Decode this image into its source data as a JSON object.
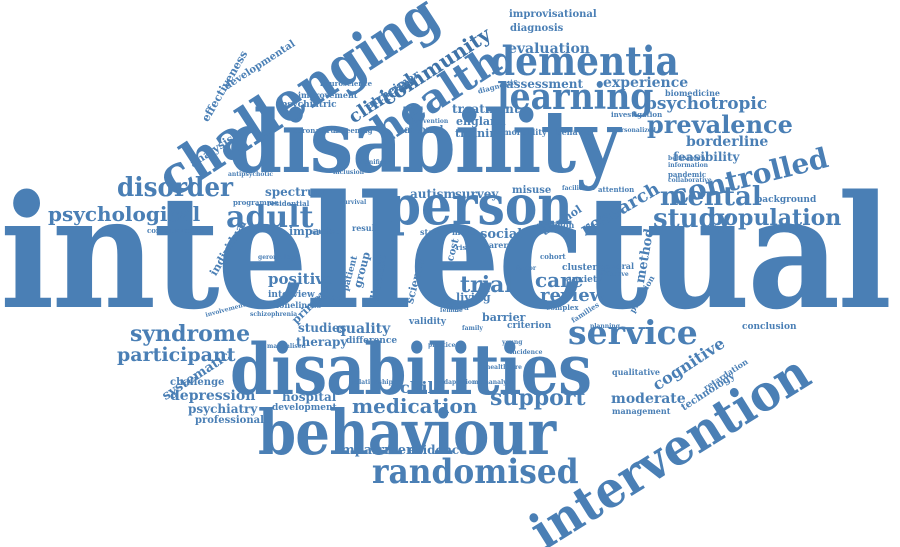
{
  "accent_color": "#4a7fb5",
  "background_color": "#ffffff",
  "words": {
    "intellectual": "intellectual",
    "disability": "disability",
    "disabilities": "disabilities",
    "behaviour": "behaviour",
    "intervention": "intervention",
    "challenging": "challenging",
    "health": "health",
    "learning": "learning",
    "dementia": "dementia",
    "person": "person",
    "adult": "adult",
    "disorder": "disorder",
    "randomised": "randomised",
    "service": "service",
    "controlled": "controlled",
    "prevalence": "prevalence",
    "mental": "mental",
    "study": "study",
    "population": "population",
    "psychological": "psychological",
    "syndrome": "syndrome",
    "participant": "participant",
    "support": "support",
    "medication": "medication",
    "trial": "trial",
    "care": "care",
    "review": "review",
    "community": "community",
    "clinical": "clinical",
    "psychotropic": "psychotropic",
    "research": "research",
    "cognitive": "cognitive",
    "evaluation": "evaluation",
    "experience": "experience",
    "assessment": "assessment",
    "borderline": "borderline",
    "feasibility": "feasibility",
    "method": "method",
    "systematic": "systematic",
    "depression": "depression",
    "psychiatry": "psychiatry",
    "moderate": "moderate",
    "child": "child",
    "quality": "quality",
    "therapy": "therapy",
    "impairment": "impairment",
    "evidence": "evidence",
    "hospital": "hospital",
    "development": "development",
    "positive": "positive",
    "autism": "autism",
    "survey": "survey",
    "social": "social",
    "spectrum": "spectrum",
    "treatment": "treatment",
    "england": "england",
    "training": "training",
    "national": "national",
    "alzheimer": "alzheimer",
    "developmental": "developmental",
    "effectiveness": "effectiveness",
    "psychiatric": "psychiatric",
    "improvisational": "improvisational",
    "diagnosis": "diagnosis",
    "biomedicine": "biomedicine",
    "background": "background",
    "conclusion": "conclusion",
    "technology": "technology",
    "professional": "professional",
    "challenge": "challenge",
    "analysis": "analysis",
    "individual": "individual",
    "primary": "primary",
    "living": "living",
    "barrier": "barrier",
    "cluster": "cluster",
    "anxiety": "anxiety",
    "alcohol": "alcohol",
    "science": "science",
    "validity": "validity",
    "studies": "studies",
    "difference": "difference",
    "disease": "disease",
    "group": "group",
    "impact": "impact",
    "programme": "programme",
    "residential": "residential",
    "screening": "screening",
    "behavior": "behavior",
    "qualitative": "qualitative",
    "management": "management",
    "criterion": "criterion",
    "morbidity": "morbidity",
    "misuse": "misuse",
    "improvement": "improvement",
    "coronavirus": "coronavirus",
    "investigation": "investigation",
    "pandemic": "pandemic",
    "communication": "communication",
    "relationship": "relationship",
    "neuroscience": "neuroscience",
    "families": "families",
    "general": "general",
    "cost": "cost",
    "model": "model",
    "interview": "interview",
    "loneliness": "loneliness",
    "manualised": "manualised",
    "retardation": "retardation",
    "provision": "provision",
    "complex": "complex",
    "diagnostic": "diagnostic",
    "attention": "attention",
    "facilitator": "facilitator",
    "common": "common",
    "result": "result",
    "staff": "staff",
    "carer": "carer",
    "cohort": "cohort",
    "patient": "patient",
    "survival": "survival",
    "practice": "practice",
    "aged": "aged",
    "risk": "risk",
    "more": "more",
    "family": "family",
    "young": "young",
    "female": "female",
    "adaptation": "adaptation",
    "metaanalysis": "metaanalysis",
    "involvement": "involvement",
    "schizophrenia": "schizophrenia",
    "affective": "affective",
    "personalized": "personalized",
    "behavioural": "behavioural",
    "information": "information",
    "antipsychotic": "antipsychotic",
    "healthcare": "healthcare",
    "outcome": "outcome",
    "factor": "factor",
    "planning": "planning",
    "collaborative": "collaborative",
    "prevention": "prevention",
    "inclusion": "inclusion",
    "significant": "significant",
    "population_health": "health",
    "incidence": "incidence",
    "profound": "profound",
    "severe": "severe",
    "comparison": "comparison",
    "gerontology": "gerontology",
    "behaviours": "behaviours",
    "caregiver": "caregiver",
    "measure": "measure",
    "efficacy": "efficacy",
    "approach": "approach"
  }
}
